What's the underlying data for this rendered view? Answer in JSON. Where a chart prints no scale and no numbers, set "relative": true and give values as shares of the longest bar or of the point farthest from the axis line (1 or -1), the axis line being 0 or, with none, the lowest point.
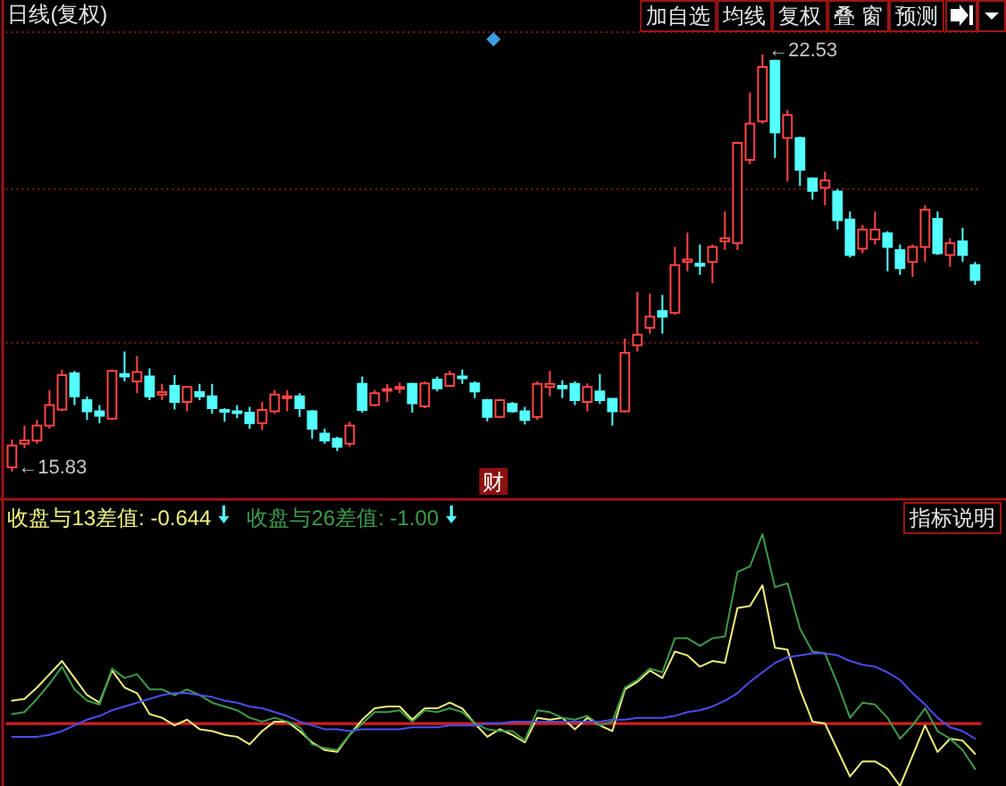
{
  "chart_data": [
    {
      "type": "candlestick",
      "title": "日线(复权)",
      "categories": [
        null,
        null,
        null,
        null,
        null,
        null,
        null,
        null,
        null,
        null,
        null,
        null,
        null,
        null,
        null,
        null,
        null,
        null,
        null,
        null,
        null,
        null,
        null,
        null,
        null,
        null,
        null,
        null,
        null,
        null,
        null,
        null,
        null,
        null,
        null,
        null,
        null,
        null,
        null,
        null,
        null,
        null,
        null,
        null,
        null,
        null,
        null,
        null,
        null,
        null,
        null,
        null,
        null,
        null,
        null,
        null,
        null,
        null,
        null,
        null,
        null,
        null,
        null,
        null,
        null,
        null,
        null,
        null,
        null,
        null,
        null,
        null,
        null,
        null,
        null,
        null,
        null,
        null
      ],
      "ohlc": [
        [
          15.9,
          16.35,
          15.83,
          16.25
        ],
        [
          16.28,
          16.57,
          16.21,
          16.33
        ],
        [
          16.33,
          16.66,
          16.28,
          16.57
        ],
        [
          16.57,
          17.14,
          16.52,
          16.9
        ],
        [
          16.83,
          17.47,
          16.8,
          17.38
        ],
        [
          17.41,
          17.45,
          16.9,
          17.04
        ],
        [
          16.98,
          17.04,
          16.66,
          16.8
        ],
        [
          16.8,
          16.9,
          16.61,
          16.73
        ],
        [
          16.68,
          17.47,
          16.66,
          17.45
        ],
        [
          17.4,
          17.76,
          17.28,
          17.36
        ],
        [
          17.28,
          17.69,
          17.09,
          17.43
        ],
        [
          17.36,
          17.49,
          16.98,
          17.04
        ],
        [
          17.07,
          17.24,
          16.98,
          17.11
        ],
        [
          17.21,
          17.38,
          16.83,
          16.95
        ],
        [
          16.95,
          17.21,
          16.8,
          17.19
        ],
        [
          17.11,
          17.24,
          16.98,
          17.04
        ],
        [
          17.04,
          17.24,
          16.76,
          16.85
        ],
        [
          16.82,
          16.85,
          16.63,
          16.8
        ],
        [
          16.8,
          16.9,
          16.69,
          16.77
        ],
        [
          16.78,
          16.87,
          16.52,
          16.61
        ],
        [
          16.61,
          16.95,
          16.5,
          16.82
        ],
        [
          16.8,
          17.14,
          16.76,
          17.07
        ],
        [
          17.01,
          17.14,
          16.8,
          17.04
        ],
        [
          17.04,
          17.09,
          16.71,
          16.85
        ],
        [
          16.8,
          16.82,
          16.36,
          16.52
        ],
        [
          16.44,
          16.52,
          16.28,
          16.33
        ],
        [
          16.36,
          16.39,
          16.16,
          16.23
        ],
        [
          16.28,
          16.63,
          16.23,
          16.57
        ],
        [
          17.24,
          17.36,
          16.78,
          16.82
        ],
        [
          16.9,
          17.14,
          16.88,
          17.09
        ],
        [
          17.13,
          17.24,
          16.95,
          17.16
        ],
        [
          17.17,
          17.26,
          17.09,
          17.19
        ],
        [
          17.24,
          17.26,
          16.78,
          16.93
        ],
        [
          16.88,
          17.28,
          16.85,
          17.25
        ],
        [
          17.31,
          17.36,
          17.12,
          17.17
        ],
        [
          17.21,
          17.45,
          17.19,
          17.4
        ],
        [
          17.36,
          17.47,
          17.24,
          17.33
        ],
        [
          17.25,
          17.28,
          17.01,
          17.12
        ],
        [
          16.98,
          17.0,
          16.64,
          16.71
        ],
        [
          16.71,
          17.0,
          16.69,
          16.98
        ],
        [
          16.92,
          16.95,
          16.78,
          16.8
        ],
        [
          16.8,
          16.87,
          16.59,
          16.66
        ],
        [
          16.71,
          17.28,
          16.66,
          17.24
        ],
        [
          17.19,
          17.45,
          17.04,
          17.24
        ],
        [
          17.21,
          17.3,
          17.01,
          17.17
        ],
        [
          17.24,
          17.28,
          16.9,
          16.98
        ],
        [
          16.95,
          17.25,
          16.8,
          17.19
        ],
        [
          17.12,
          17.4,
          16.92,
          16.98
        ],
        [
          17.0,
          17.01,
          16.57,
          16.8
        ],
        [
          16.8,
          17.97,
          16.78,
          17.74
        ],
        [
          17.86,
          18.72,
          17.76,
          18.03
        ],
        [
          18.14,
          18.69,
          18.05,
          18.32
        ],
        [
          18.41,
          18.67,
          18.05,
          18.32
        ],
        [
          18.38,
          19.44,
          18.35,
          19.15
        ],
        [
          19.2,
          19.67,
          19.05,
          19.24
        ],
        [
          19.17,
          19.48,
          18.99,
          19.14
        ],
        [
          19.2,
          19.48,
          18.86,
          19.44
        ],
        [
          19.53,
          20.01,
          19.39,
          19.58
        ],
        [
          19.5,
          21.13,
          19.39,
          21.11
        ],
        [
          20.84,
          21.92,
          20.77,
          21.42
        ],
        [
          21.46,
          22.53,
          21.42,
          22.33
        ],
        [
          22.43,
          22.45,
          20.87,
          21.28
        ],
        [
          21.19,
          21.64,
          20.49,
          21.56
        ],
        [
          21.19,
          21.21,
          20.42,
          20.68
        ],
        [
          20.54,
          20.56,
          20.2,
          20.34
        ],
        [
          20.39,
          20.65,
          20.11,
          20.51
        ],
        [
          20.33,
          20.37,
          19.72,
          19.87
        ],
        [
          19.88,
          20.01,
          19.27,
          19.31
        ],
        [
          19.41,
          19.79,
          19.34,
          19.72
        ],
        [
          19.56,
          20.01,
          19.48,
          19.72
        ],
        [
          19.66,
          19.69,
          19.05,
          19.44
        ],
        [
          19.39,
          19.48,
          18.99,
          19.1
        ],
        [
          19.2,
          19.48,
          18.96,
          19.44
        ],
        [
          19.44,
          20.11,
          19.2,
          20.04
        ],
        [
          19.89,
          20.01,
          19.31,
          19.34
        ],
        [
          19.31,
          19.58,
          19.12,
          19.5
        ],
        [
          19.53,
          19.75,
          19.2,
          19.31
        ],
        [
          19.15,
          19.2,
          18.83,
          18.91
        ]
      ],
      "colors": [
        "#ff4646",
        "#ff4646",
        "#ff4646",
        "#ff4646",
        "#ff4646",
        "#54ffff",
        "#54ffff",
        "#54ffff",
        "#ff4646",
        "#54ffff",
        "#ff4646",
        "#54ffff",
        "#ff4646",
        "#54ffff",
        "#ff4646",
        "#54ffff",
        "#54ffff",
        "#54ffff",
        "#54ffff",
        "#54ffff",
        "#ff4646",
        "#ff4646",
        "#ff4646",
        "#54ffff",
        "#54ffff",
        "#54ffff",
        "#54ffff",
        "#ff4646",
        "#54ffff",
        "#ff4646",
        "#ff4646",
        "#ff4646",
        "#54ffff",
        "#ff4646",
        "#54ffff",
        "#ff4646",
        "#54ffff",
        "#54ffff",
        "#54ffff",
        "#ff4646",
        "#54ffff",
        "#54ffff",
        "#ff4646",
        "#ff4646",
        "#54ffff",
        "#54ffff",
        "#ff4646",
        "#54ffff",
        "#54ffff",
        "#ff4646",
        "#ff4646",
        "#ff4646",
        "#54ffff",
        "#ff4646",
        "#ff4646",
        "#54ffff",
        "#ff4646",
        "#ff4646",
        "#ff4646",
        "#ff4646",
        "#ff4646",
        "#54ffff",
        "#ff4646",
        "#54ffff",
        "#54ffff",
        "#ff4646",
        "#54ffff",
        "#54ffff",
        "#ff4646",
        "#ff4646",
        "#54ffff",
        "#54ffff",
        "#ff4646",
        "#ff4646",
        "#54ffff",
        "#ff4646",
        "#54ffff",
        "#54ffff"
      ],
      "ylim": [
        15.43,
        22.89
      ],
      "yticks": [
        {
          "value": 17.9,
          "label": null
        },
        {
          "value": 20.37,
          "label": null
        },
        {
          "value": 22.89,
          "label": null
        }
      ],
      "grid": "y",
      "annotations": [
        "←22.53",
        "←15.83",
        "财",
        "加自选",
        "均线",
        "复权",
        "叠 窗",
        "预测"
      ]
    },
    {
      "type": "line",
      "relative": true,
      "categories": [
        null,
        null,
        null,
        null,
        null,
        null,
        null,
        null,
        null,
        null,
        null,
        null,
        null,
        null,
        null,
        null,
        null,
        null,
        null,
        null,
        null,
        null,
        null,
        null,
        null,
        null,
        null,
        null,
        null,
        null,
        null,
        null,
        null,
        null,
        null,
        null,
        null,
        null,
        null,
        null,
        null,
        null,
        null,
        null,
        null,
        null,
        null,
        null,
        null,
        null,
        null,
        null,
        null,
        null,
        null,
        null,
        null,
        null,
        null,
        null,
        null,
        null,
        null,
        null,
        null,
        null,
        null,
        null,
        null,
        null,
        null,
        null,
        null,
        null,
        null,
        null,
        null,
        null
      ],
      "series": [
        {
          "name": "收盘与13差值: -0.644",
          "color": "#f0f080",
          "values": [
            0.12,
            0.13,
            0.19,
            0.26,
            0.33,
            0.24,
            0.15,
            0.11,
            0.28,
            0.19,
            0.16,
            0.05,
            0.03,
            -0.01,
            0.02,
            -0.03,
            -0.04,
            -0.06,
            -0.07,
            -0.11,
            -0.04,
            0.01,
            0.01,
            -0.04,
            -0.1,
            -0.14,
            -0.15,
            -0.06,
            0.02,
            0.08,
            0.09,
            0.09,
            0.02,
            0.08,
            0.08,
            0.11,
            0.08,
            0.0,
            -0.07,
            -0.03,
            -0.06,
            -0.1,
            0.03,
            0.02,
            0.03,
            -0.03,
            0.03,
            -0.01,
            -0.04,
            0.18,
            0.22,
            0.28,
            0.24,
            0.38,
            0.36,
            0.3,
            0.33,
            0.32,
            0.61,
            0.62,
            0.73,
            0.4,
            0.39,
            0.18,
            0.01,
            0.0,
            -0.14,
            -0.28,
            -0.2,
            -0.2,
            -0.24,
            -0.33,
            -0.17,
            -0.01,
            -0.15,
            -0.08,
            -0.09,
            -0.16
          ]
        },
        {
          "name": "收盘与26差值: -1.00",
          "color": "#3c9c4a",
          "values": [
            0.05,
            0.06,
            0.13,
            0.21,
            0.3,
            0.18,
            0.12,
            0.1,
            0.29,
            0.24,
            0.26,
            0.18,
            0.18,
            0.15,
            0.18,
            0.15,
            0.11,
            0.09,
            0.07,
            0.03,
            0.01,
            0.03,
            0.01,
            -0.02,
            -0.11,
            -0.13,
            -0.14,
            -0.06,
            0.0,
            0.06,
            0.06,
            0.07,
            0.01,
            0.07,
            0.06,
            0.08,
            0.06,
            0.0,
            -0.03,
            -0.04,
            -0.04,
            -0.09,
            0.07,
            0.06,
            0.03,
            0.02,
            0.04,
            -0.01,
            0.01,
            0.19,
            0.23,
            0.29,
            0.27,
            0.45,
            0.45,
            0.41,
            0.45,
            0.46,
            0.8,
            0.83,
            1,
            0.72,
            0.74,
            0.5,
            0.38,
            0.37,
            0.21,
            0.03,
            0.11,
            0.1,
            0.03,
            -0.08,
            -0.01,
            0.08,
            -0.04,
            -0.08,
            -0.14,
            -0.24
          ]
        },
        {
          "color": "#4c4cf0",
          "values": [
            -0.07,
            -0.07,
            -0.07,
            -0.06,
            -0.04,
            -0.01,
            0.02,
            0.04,
            0.07,
            0.09,
            0.11,
            0.13,
            0.15,
            0.16,
            0.16,
            0.15,
            0.14,
            0.12,
            0.11,
            0.09,
            0.08,
            0.06,
            0.04,
            0.01,
            -0.01,
            -0.03,
            -0.03,
            -0.04,
            -0.03,
            -0.03,
            -0.03,
            -0.03,
            -0.02,
            -0.02,
            -0.02,
            -0.01,
            -0.01,
            -0.01,
            0.0,
            0.0,
            0.01,
            0.01,
            0.01,
            0.01,
            0.01,
            0.01,
            0.01,
            0.01,
            0.02,
            0.02,
            0.03,
            0.03,
            0.03,
            0.04,
            0.06,
            0.07,
            0.09,
            0.12,
            0.16,
            0.22,
            0.27,
            0.32,
            0.35,
            0.36,
            0.37,
            0.37,
            0.36,
            0.33,
            0.31,
            0.3,
            0.27,
            0.23,
            0.16,
            0.1,
            0.03,
            -0.02,
            -0.04,
            -0.08
          ]
        }
      ],
      "ref_lines": [
        {
          "axis": "y",
          "value": 0,
          "color": "#d02020"
        }
      ],
      "legend": "top left",
      "annotations": [
        "指标说明"
      ]
    }
  ]
}
